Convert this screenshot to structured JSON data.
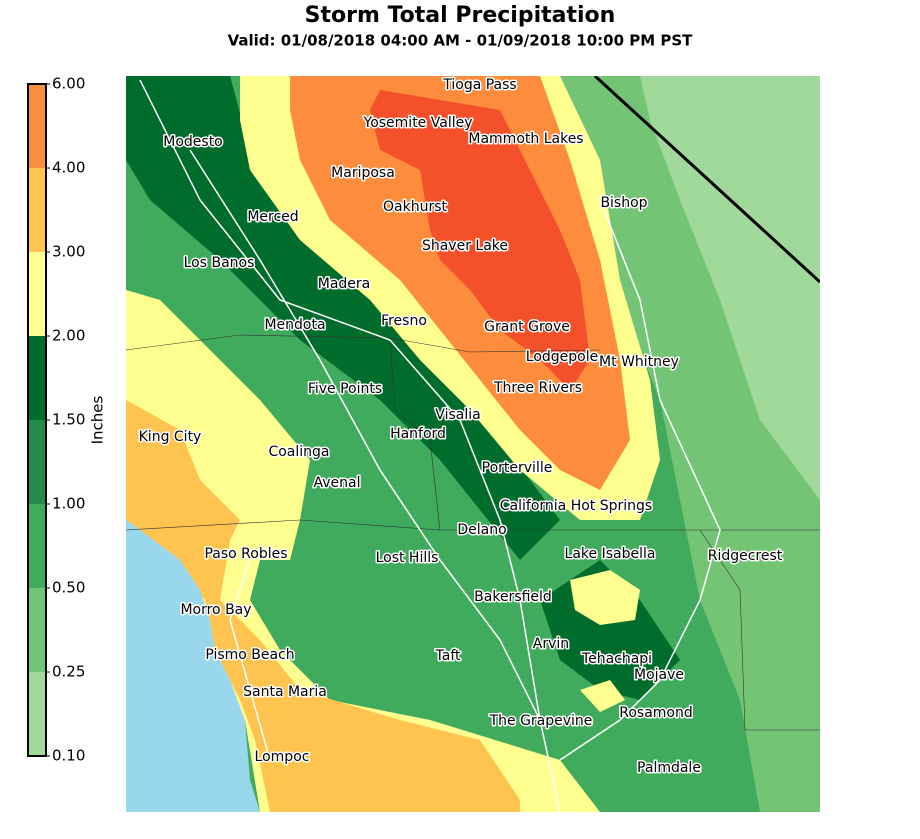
{
  "title": "Storm Total Precipitation",
  "subtitle": "Valid: 01/08/2018 04:00 AM - 01/09/2018 10:00 PM PST",
  "colorbar": {
    "label": "Inches",
    "ticks": [
      {
        "value": 0.1,
        "label": "0.10"
      },
      {
        "value": 0.25,
        "label": "0.25"
      },
      {
        "value": 0.5,
        "label": "0.50"
      },
      {
        "value": 1,
        "label": "1.00"
      },
      {
        "value": 1.5,
        "label": "1.50"
      },
      {
        "value": 2,
        "label": "2.00"
      },
      {
        "value": 3,
        "label": "3.00"
      },
      {
        "value": 4,
        "label": "4.00"
      },
      {
        "value": 6,
        "label": "6.00"
      }
    ],
    "colors": [
      "#a1d99b",
      "#74c476",
      "#41ab5d",
      "#238b45",
      "#006d2c",
      "#ffff8f",
      "#fec44f",
      "#fd8d3c",
      "#f4502a"
    ]
  },
  "cities": [
    "Tioga Pass",
    "Yosemite Valley",
    "Mammoth Lakes",
    "Modesto",
    "Mariposa",
    "Bishop",
    "Oakhurst",
    "Merced",
    "Shaver Lake",
    "Los Banos",
    "Madera",
    "Fresno",
    "Grant Grove",
    "Mendota",
    "Lodgepole",
    "Mt Whitney",
    "Five Points",
    "Three Rivers",
    "Visalia",
    "Hanford",
    "King City",
    "Coalinga",
    "Porterville",
    "Avenal",
    "California Hot Springs",
    "Delano",
    "Paso Robles",
    "Lake Isabella",
    "Ridgecrest",
    "Lost Hills",
    "Bakersfield",
    "Morro Bay",
    "Arvin",
    "Pismo Beach",
    "Taft",
    "Tehachapi",
    "Mojave",
    "Santa Maria",
    "Rosamond",
    "The Grapevine",
    "Lompoc",
    "Palmdale"
  ]
}
